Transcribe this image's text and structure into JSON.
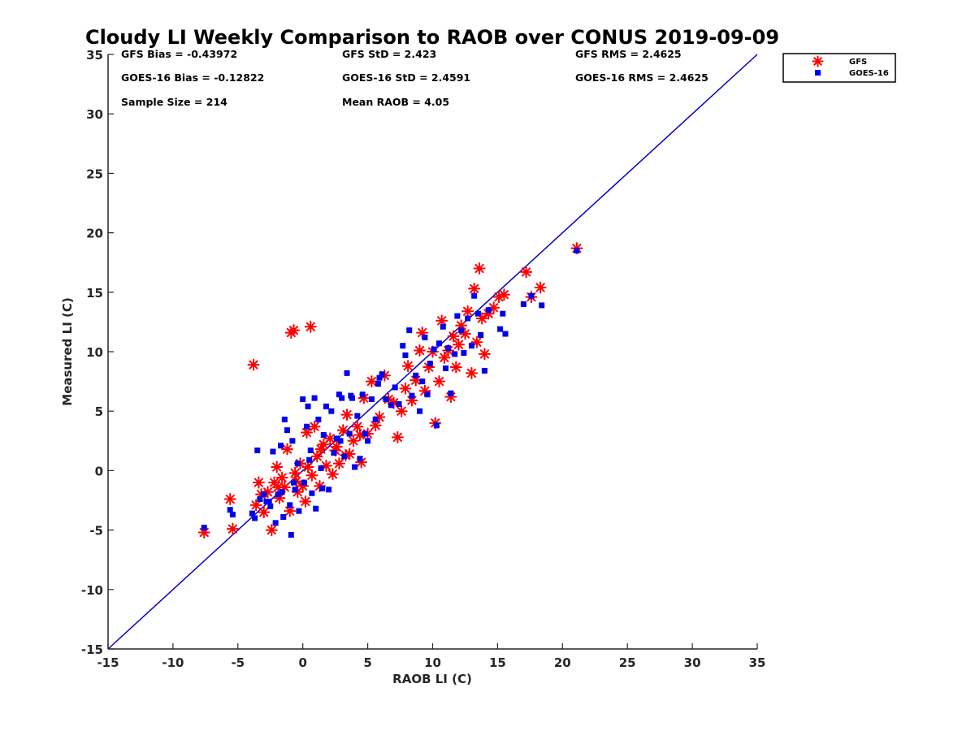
{
  "chart_data": {
    "type": "scatter",
    "title": "Cloudy LI Weekly Comparison to RAOB over CONUS 2019-09-09",
    "xlabel": "RAOB LI (C)",
    "ylabel": "Measured LI (C)",
    "xlim": [
      -15,
      35
    ],
    "ylim": [
      -15,
      35
    ],
    "xticks": [
      "-15",
      "-10",
      "-5",
      "0",
      "5",
      "10",
      "15",
      "20",
      "25",
      "30",
      "35"
    ],
    "yticks": [
      "-15",
      "-10",
      "-5",
      "0",
      "5",
      "10",
      "15",
      "20",
      "25",
      "30",
      "35"
    ],
    "xtick_values": [
      -15,
      -10,
      -5,
      0,
      5,
      10,
      15,
      20,
      25,
      30,
      35
    ],
    "ytick_values": [
      -15,
      -10,
      -5,
      0,
      5,
      10,
      15,
      20,
      25,
      30,
      35
    ],
    "grid": false,
    "legend_position": "outside-top-right",
    "reference_line": {
      "x": [
        -15,
        35
      ],
      "y": [
        -15,
        35
      ],
      "color": "#0000cc"
    },
    "stats": [
      [
        "GFS Bias = -0.43972",
        "GFS StD = 2.423",
        "GFS RMS = 2.4625"
      ],
      [
        "GOES-16 Bias = -0.12822",
        "GOES-16 StD = 2.4591",
        "GOES-16 RMS = 2.4625"
      ],
      [
        "Sample Size = 214",
        "Mean RAOB = 4.05",
        ""
      ]
    ],
    "series": [
      {
        "name": "GFS",
        "marker": "asterisk",
        "color": "#ff0000",
        "points": [
          [
            -7.6,
            -5.2
          ],
          [
            -5.6,
            -2.4
          ],
          [
            -5.4,
            -4.9
          ],
          [
            -3.8,
            8.9
          ],
          [
            -3.6,
            -2.9
          ],
          [
            -3.4,
            -1.0
          ],
          [
            -3.2,
            -2.0
          ],
          [
            -3.0,
            -3.5
          ],
          [
            -2.4,
            -5.0
          ],
          [
            -2.2,
            -1.0
          ],
          [
            -2.0,
            0.3
          ],
          [
            -1.8,
            -2.3
          ],
          [
            -1.6,
            -0.6
          ],
          [
            -1.4,
            -1.4
          ],
          [
            -1.2,
            1.8
          ],
          [
            -1.0,
            -3.4
          ],
          [
            -0.9,
            11.6
          ],
          [
            -0.7,
            11.8
          ],
          [
            -0.6,
            -0.2
          ],
          [
            -0.4,
            -1.8
          ],
          [
            -0.2,
            0.6
          ],
          [
            0.0,
            -1.3
          ],
          [
            0.2,
            -2.6
          ],
          [
            0.3,
            3.2
          ],
          [
            0.6,
            12.1
          ],
          [
            0.7,
            -0.4
          ],
          [
            0.9,
            3.7
          ],
          [
            1.1,
            1.2
          ],
          [
            1.3,
            -1.3
          ],
          [
            1.6,
            2.2
          ],
          [
            1.8,
            0.4
          ],
          [
            2.1,
            2.7
          ],
          [
            2.3,
            -0.3
          ],
          [
            2.5,
            1.7
          ],
          [
            2.8,
            0.6
          ],
          [
            3.1,
            3.4
          ],
          [
            3.4,
            4.7
          ],
          [
            3.6,
            1.4
          ],
          [
            3.9,
            2.5
          ],
          [
            4.2,
            3.7
          ],
          [
            4.5,
            0.7
          ],
          [
            4.7,
            6.1
          ],
          [
            5.0,
            3.1
          ],
          [
            5.3,
            7.5
          ],
          [
            5.6,
            3.8
          ],
          [
            5.9,
            4.5
          ],
          [
            6.3,
            8.0
          ],
          [
            6.6,
            6.0
          ],
          [
            7.0,
            5.7
          ],
          [
            7.3,
            2.8
          ],
          [
            7.6,
            5.0
          ],
          [
            7.9,
            6.9
          ],
          [
            8.1,
            8.8
          ],
          [
            8.4,
            5.9
          ],
          [
            8.7,
            7.6
          ],
          [
            9.0,
            10.1
          ],
          [
            9.2,
            11.6
          ],
          [
            9.4,
            6.7
          ],
          [
            9.7,
            8.7
          ],
          [
            10.0,
            10.0
          ],
          [
            10.2,
            4.0
          ],
          [
            10.5,
            7.5
          ],
          [
            10.7,
            12.6
          ],
          [
            10.9,
            9.5
          ],
          [
            11.2,
            10.1
          ],
          [
            11.4,
            6.2
          ],
          [
            11.6,
            11.3
          ],
          [
            11.8,
            8.7
          ],
          [
            12.0,
            10.6
          ],
          [
            12.2,
            12.2
          ],
          [
            12.5,
            11.5
          ],
          [
            12.7,
            13.4
          ],
          [
            13.0,
            8.2
          ],
          [
            13.2,
            15.3
          ],
          [
            13.4,
            10.8
          ],
          [
            13.6,
            17.0
          ],
          [
            13.8,
            12.8
          ],
          [
            14.0,
            9.8
          ],
          [
            14.3,
            13.2
          ],
          [
            14.7,
            13.7
          ],
          [
            15.1,
            14.6
          ],
          [
            15.5,
            14.8
          ],
          [
            17.2,
            16.7
          ],
          [
            17.6,
            14.6
          ],
          [
            18.3,
            15.4
          ],
          [
            21.1,
            18.7
          ],
          [
            -2.7,
            -1.8
          ],
          [
            -1.9,
            -1.4
          ],
          [
            -0.5,
            -0.9
          ],
          [
            0.4,
            0.3
          ],
          [
            1.4,
            1.8
          ],
          [
            2.6,
            2.0
          ],
          [
            3.3,
            1.3
          ],
          [
            4.4,
            3.0
          ]
        ]
      },
      {
        "name": "GOES-16",
        "marker": "square",
        "color": "#0000ee",
        "points": [
          [
            -7.6,
            -4.8
          ],
          [
            -5.6,
            -3.3
          ],
          [
            -5.4,
            -3.7
          ],
          [
            -3.9,
            -3.6
          ],
          [
            -3.7,
            -4.0
          ],
          [
            -3.5,
            1.7
          ],
          [
            -3.3,
            -2.4
          ],
          [
            -3.0,
            -2.0
          ],
          [
            -2.8,
            -2.6
          ],
          [
            -2.5,
            -3.0
          ],
          [
            -2.3,
            1.6
          ],
          [
            -2.1,
            -4.4
          ],
          [
            -1.9,
            -2.0
          ],
          [
            -1.7,
            2.1
          ],
          [
            -1.5,
            -3.9
          ],
          [
            -1.4,
            4.3
          ],
          [
            -1.2,
            3.4
          ],
          [
            -1.0,
            -2.9
          ],
          [
            -0.9,
            -5.4
          ],
          [
            -0.8,
            2.5
          ],
          [
            -0.6,
            -1.6
          ],
          [
            -0.4,
            0.6
          ],
          [
            -0.3,
            -3.4
          ],
          [
            0.0,
            6.0
          ],
          [
            0.1,
            -1.0
          ],
          [
            0.3,
            3.7
          ],
          [
            0.4,
            5.4
          ],
          [
            0.6,
            1.7
          ],
          [
            0.7,
            -1.9
          ],
          [
            0.9,
            6.1
          ],
          [
            1.0,
            -3.2
          ],
          [
            1.2,
            4.3
          ],
          [
            1.4,
            0.2
          ],
          [
            1.6,
            3.0
          ],
          [
            1.8,
            5.4
          ],
          [
            2.0,
            -1.6
          ],
          [
            2.2,
            5.0
          ],
          [
            2.4,
            1.5
          ],
          [
            2.6,
            2.7
          ],
          [
            2.8,
            6.4
          ],
          [
            3.0,
            6.1
          ],
          [
            3.2,
            1.2
          ],
          [
            3.4,
            8.2
          ],
          [
            3.6,
            3.1
          ],
          [
            3.8,
            6.1
          ],
          [
            4.0,
            0.3
          ],
          [
            4.2,
            4.6
          ],
          [
            4.4,
            1.0
          ],
          [
            4.6,
            6.4
          ],
          [
            4.8,
            3.1
          ],
          [
            5.0,
            2.5
          ],
          [
            5.3,
            6.0
          ],
          [
            5.6,
            4.3
          ],
          [
            5.9,
            7.8
          ],
          [
            6.1,
            8.1
          ],
          [
            6.4,
            6.0
          ],
          [
            6.8,
            5.5
          ],
          [
            7.1,
            7.0
          ],
          [
            7.4,
            5.6
          ],
          [
            7.7,
            10.5
          ],
          [
            7.9,
            9.7
          ],
          [
            8.2,
            11.8
          ],
          [
            8.4,
            6.3
          ],
          [
            8.7,
            8.0
          ],
          [
            9.0,
            5.0
          ],
          [
            9.2,
            7.5
          ],
          [
            9.4,
            11.2
          ],
          [
            9.6,
            6.4
          ],
          [
            9.8,
            9.0
          ],
          [
            10.1,
            10.2
          ],
          [
            10.3,
            3.8
          ],
          [
            10.5,
            10.7
          ],
          [
            10.8,
            12.1
          ],
          [
            11.0,
            8.6
          ],
          [
            11.2,
            10.3
          ],
          [
            11.4,
            6.5
          ],
          [
            11.7,
            9.8
          ],
          [
            11.9,
            13.0
          ],
          [
            12.2,
            11.8
          ],
          [
            12.4,
            9.9
          ],
          [
            12.7,
            12.8
          ],
          [
            13.0,
            10.5
          ],
          [
            13.2,
            14.7
          ],
          [
            13.5,
            13.2
          ],
          [
            13.7,
            11.4
          ],
          [
            14.0,
            8.4
          ],
          [
            14.3,
            13.5
          ],
          [
            15.2,
            11.9
          ],
          [
            15.4,
            13.2
          ],
          [
            15.6,
            11.5
          ],
          [
            17.0,
            14.0
          ],
          [
            17.6,
            14.7
          ],
          [
            18.4,
            13.9
          ],
          [
            21.1,
            18.5
          ],
          [
            -2.6,
            -2.6
          ],
          [
            -1.6,
            -1.8
          ],
          [
            -0.7,
            -1.0
          ],
          [
            0.5,
            0.9
          ],
          [
            1.5,
            -1.5
          ],
          [
            2.9,
            2.5
          ],
          [
            3.7,
            6.3
          ],
          [
            5.8,
            7.3
          ]
        ]
      }
    ]
  }
}
